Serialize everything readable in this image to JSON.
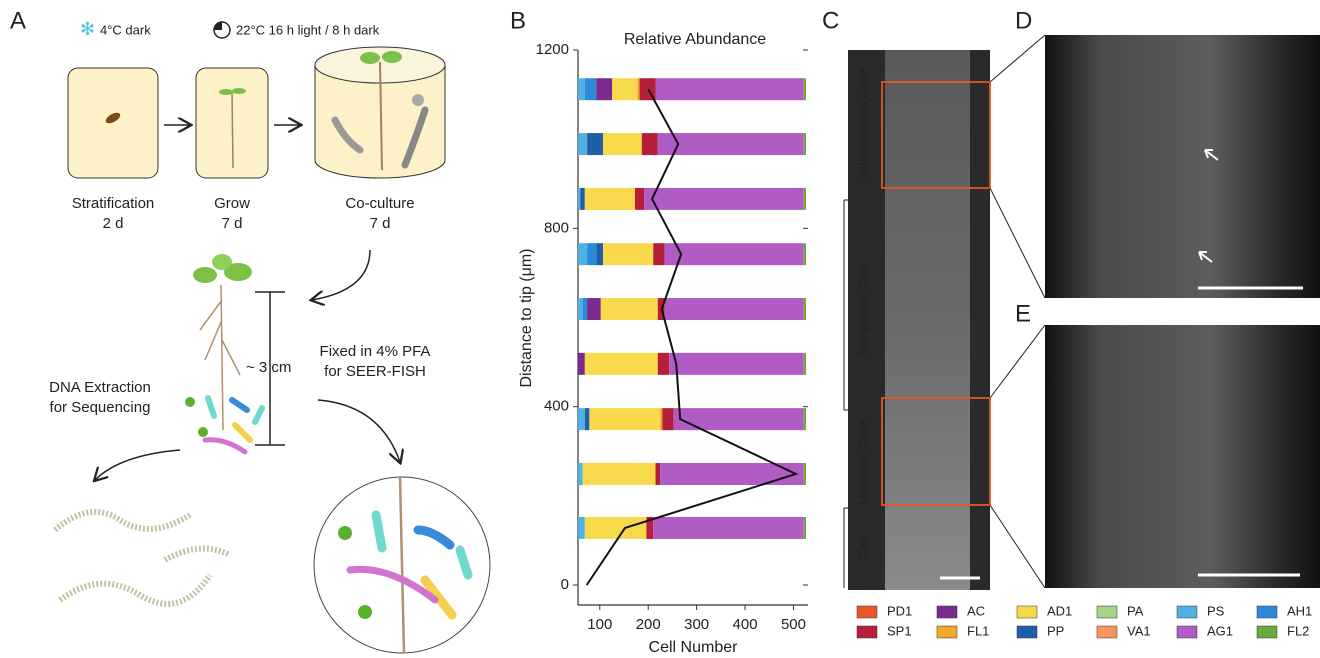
{
  "panel_labels": [
    "A",
    "B",
    "C",
    "D",
    "E"
  ],
  "panel_a": {
    "cold": "4°C dark",
    "light": "22°C  16 h  light / 8 h dark",
    "steps": [
      {
        "label": "Stratification",
        "time": "2 d"
      },
      {
        "label": "Grow",
        "time": "7 d"
      },
      {
        "label": "Co-culture",
        "time": "7 d"
      }
    ],
    "length": "~ 3 cm",
    "left_branch": [
      "DNA Extraction",
      "for Sequencing"
    ],
    "right_branch": [
      "Fixed in 4% PFA",
      "for SEER-FISH"
    ]
  },
  "panel_c": {
    "zones": [
      "Differentiation Zone",
      "Elongation Zone",
      "Meristem Zone",
      "Cap"
    ]
  },
  "chart_data": {
    "type": "stacked-bar-line",
    "title": "Relative Abundance",
    "xlabel": "Cell Number",
    "ylabel": "Distance to tip (μm)",
    "xlim": [
      55,
      530
    ],
    "xticks": [
      100,
      200,
      300,
      400,
      500
    ],
    "ylim": [
      0,
      1200
    ],
    "yticks": [
      0,
      400,
      800,
      1200
    ],
    "bar_y": [
      1112,
      989,
      866,
      742,
      619,
      496,
      372,
      249,
      128
    ],
    "series": [
      {
        "name": "PD1",
        "color": "#e8572a",
        "values": [
          0,
          0,
          0,
          0,
          0,
          0,
          0,
          0,
          0
        ]
      },
      {
        "name": "SP1",
        "color": "#b51f3a",
        "values": [
          7,
          7,
          4,
          5,
          3,
          5,
          5,
          2,
          3
        ]
      },
      {
        "name": "AC",
        "color": "#7b2a8e",
        "values": [
          7,
          0,
          0,
          0,
          6,
          3,
          0,
          0,
          0
        ]
      },
      {
        "name": "FL1",
        "color": "#f0a830",
        "values": [
          1,
          0,
          0,
          0,
          0,
          0,
          1,
          0,
          0
        ]
      },
      {
        "name": "AD1",
        "color": "#f8d94c",
        "values": [
          11,
          17,
          22,
          22,
          25,
          32,
          31,
          32,
          27
        ]
      },
      {
        "name": "PP",
        "color": "#1f5fa8",
        "values": [
          0,
          7,
          2,
          3,
          0,
          0,
          2,
          0,
          0
        ]
      },
      {
        "name": "PA",
        "color": "#a6d38a",
        "values": [
          0,
          0,
          0,
          0,
          0,
          0,
          0,
          0,
          0
        ]
      },
      {
        "name": "VA1",
        "color": "#f7955c",
        "values": [
          0,
          0,
          0,
          0,
          0,
          0,
          0,
          0,
          0
        ]
      },
      {
        "name": "PS",
        "color": "#4fb1e4",
        "values": [
          3,
          4,
          1,
          4,
          2,
          0,
          3,
          2,
          3
        ]
      },
      {
        "name": "AG1",
        "color": "#b05cc4",
        "values": [
          65,
          64,
          70,
          61,
          61,
          59,
          57,
          63,
          66
        ]
      },
      {
        "name": "AH1",
        "color": "#2d8ad8",
        "values": [
          5,
          0,
          0,
          4,
          2,
          0,
          0,
          0,
          0
        ]
      },
      {
        "name": "FL2",
        "color": "#6aab3c",
        "values": [
          1,
          1,
          1,
          1,
          1,
          1,
          1,
          1,
          1
        ]
      }
    ],
    "line": {
      "color": "#111111",
      "values": [
        73,
        152,
        505,
        266,
        258,
        228,
        268,
        208,
        262,
        200
      ],
      "distance": [
        0,
        128,
        249,
        372,
        496,
        619,
        742,
        866,
        989,
        1112
      ]
    }
  }
}
